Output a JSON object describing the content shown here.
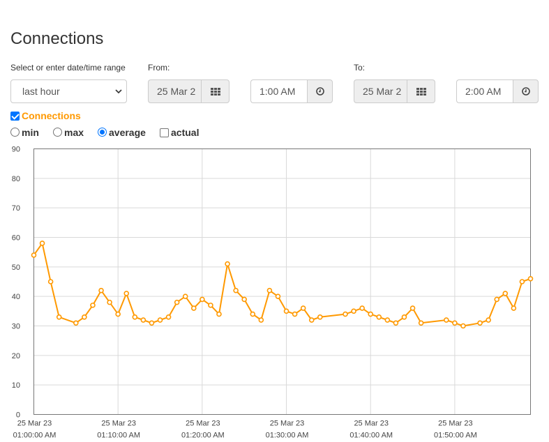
{
  "page": {
    "title": "Connections"
  },
  "range": {
    "label": "Select or enter date/time range",
    "selected": "last hour"
  },
  "from": {
    "label": "From:",
    "date": "25 Mar 2",
    "time": "1:00 AM"
  },
  "to": {
    "label": "To:",
    "date": "25 Mar 2",
    "time": "2:00 AM"
  },
  "series_toggle": {
    "label": "Connections",
    "checked": true,
    "color": "#ff9900"
  },
  "aggregation": {
    "options": [
      {
        "label": "min",
        "selected": false
      },
      {
        "label": "max",
        "selected": false
      },
      {
        "label": "average",
        "selected": true
      }
    ],
    "actual": {
      "label": "actual",
      "checked": false
    }
  },
  "icons": {
    "calendar": "calendar-grid-icon",
    "clock": "clock-icon",
    "caret": "chevron-down-icon"
  },
  "colors": {
    "line": "#ff9900",
    "grid": "#d9d9d9",
    "checkbox": "#0075ff"
  },
  "chart_data": {
    "type": "line",
    "title": "",
    "xlabel": "",
    "ylabel": "",
    "ylim": [
      0,
      90
    ],
    "yticks": [
      "0",
      "10",
      "20",
      "30",
      "40",
      "50",
      "60",
      "70",
      "80",
      "90"
    ],
    "xlim": [
      0,
      59
    ],
    "xticks": [
      {
        "minute": 0,
        "date": "25 Mar 23",
        "time": "01:00:00 AM"
      },
      {
        "minute": 10,
        "date": "25 Mar 23",
        "time": "01:10:00 AM"
      },
      {
        "minute": 20,
        "date": "25 Mar 23",
        "time": "01:20:00 AM"
      },
      {
        "minute": 30,
        "date": "25 Mar 23",
        "time": "01:30:00 AM"
      },
      {
        "minute": 40,
        "date": "25 Mar 23",
        "time": "01:40:00 AM"
      },
      {
        "minute": 50,
        "date": "25 Mar 23",
        "time": "01:50:00 AM"
      }
    ],
    "grid": true,
    "series": [
      {
        "name": "Connections",
        "points": [
          [
            0,
            54
          ],
          [
            1,
            58
          ],
          [
            2,
            45
          ],
          [
            3,
            33
          ],
          [
            5,
            31
          ],
          [
            6,
            33
          ],
          [
            7,
            37
          ],
          [
            8,
            42
          ],
          [
            9,
            38
          ],
          [
            10,
            34
          ],
          [
            11,
            41
          ],
          [
            12,
            33
          ],
          [
            13,
            32
          ],
          [
            14,
            31
          ],
          [
            15,
            32
          ],
          [
            16,
            33
          ],
          [
            17,
            38
          ],
          [
            18,
            40
          ],
          [
            19,
            36
          ],
          [
            20,
            39
          ],
          [
            21,
            37
          ],
          [
            22,
            34
          ],
          [
            23,
            51
          ],
          [
            24,
            42
          ],
          [
            25,
            39
          ],
          [
            26,
            34
          ],
          [
            27,
            32
          ],
          [
            28,
            42
          ],
          [
            29,
            40
          ],
          [
            30,
            35
          ],
          [
            31,
            34
          ],
          [
            32,
            36
          ],
          [
            33,
            32
          ],
          [
            34,
            33
          ],
          [
            37,
            34
          ],
          [
            38,
            35
          ],
          [
            39,
            36
          ],
          [
            40,
            34
          ],
          [
            41,
            33
          ],
          [
            42,
            32
          ],
          [
            43,
            31
          ],
          [
            44,
            33
          ],
          [
            45,
            36
          ],
          [
            46,
            31
          ],
          [
            49,
            32
          ],
          [
            50,
            31
          ],
          [
            51,
            30
          ],
          [
            53,
            31
          ],
          [
            54,
            32
          ],
          [
            55,
            39
          ],
          [
            56,
            41
          ],
          [
            57,
            36
          ],
          [
            58,
            45
          ],
          [
            59,
            46
          ]
        ]
      }
    ]
  }
}
